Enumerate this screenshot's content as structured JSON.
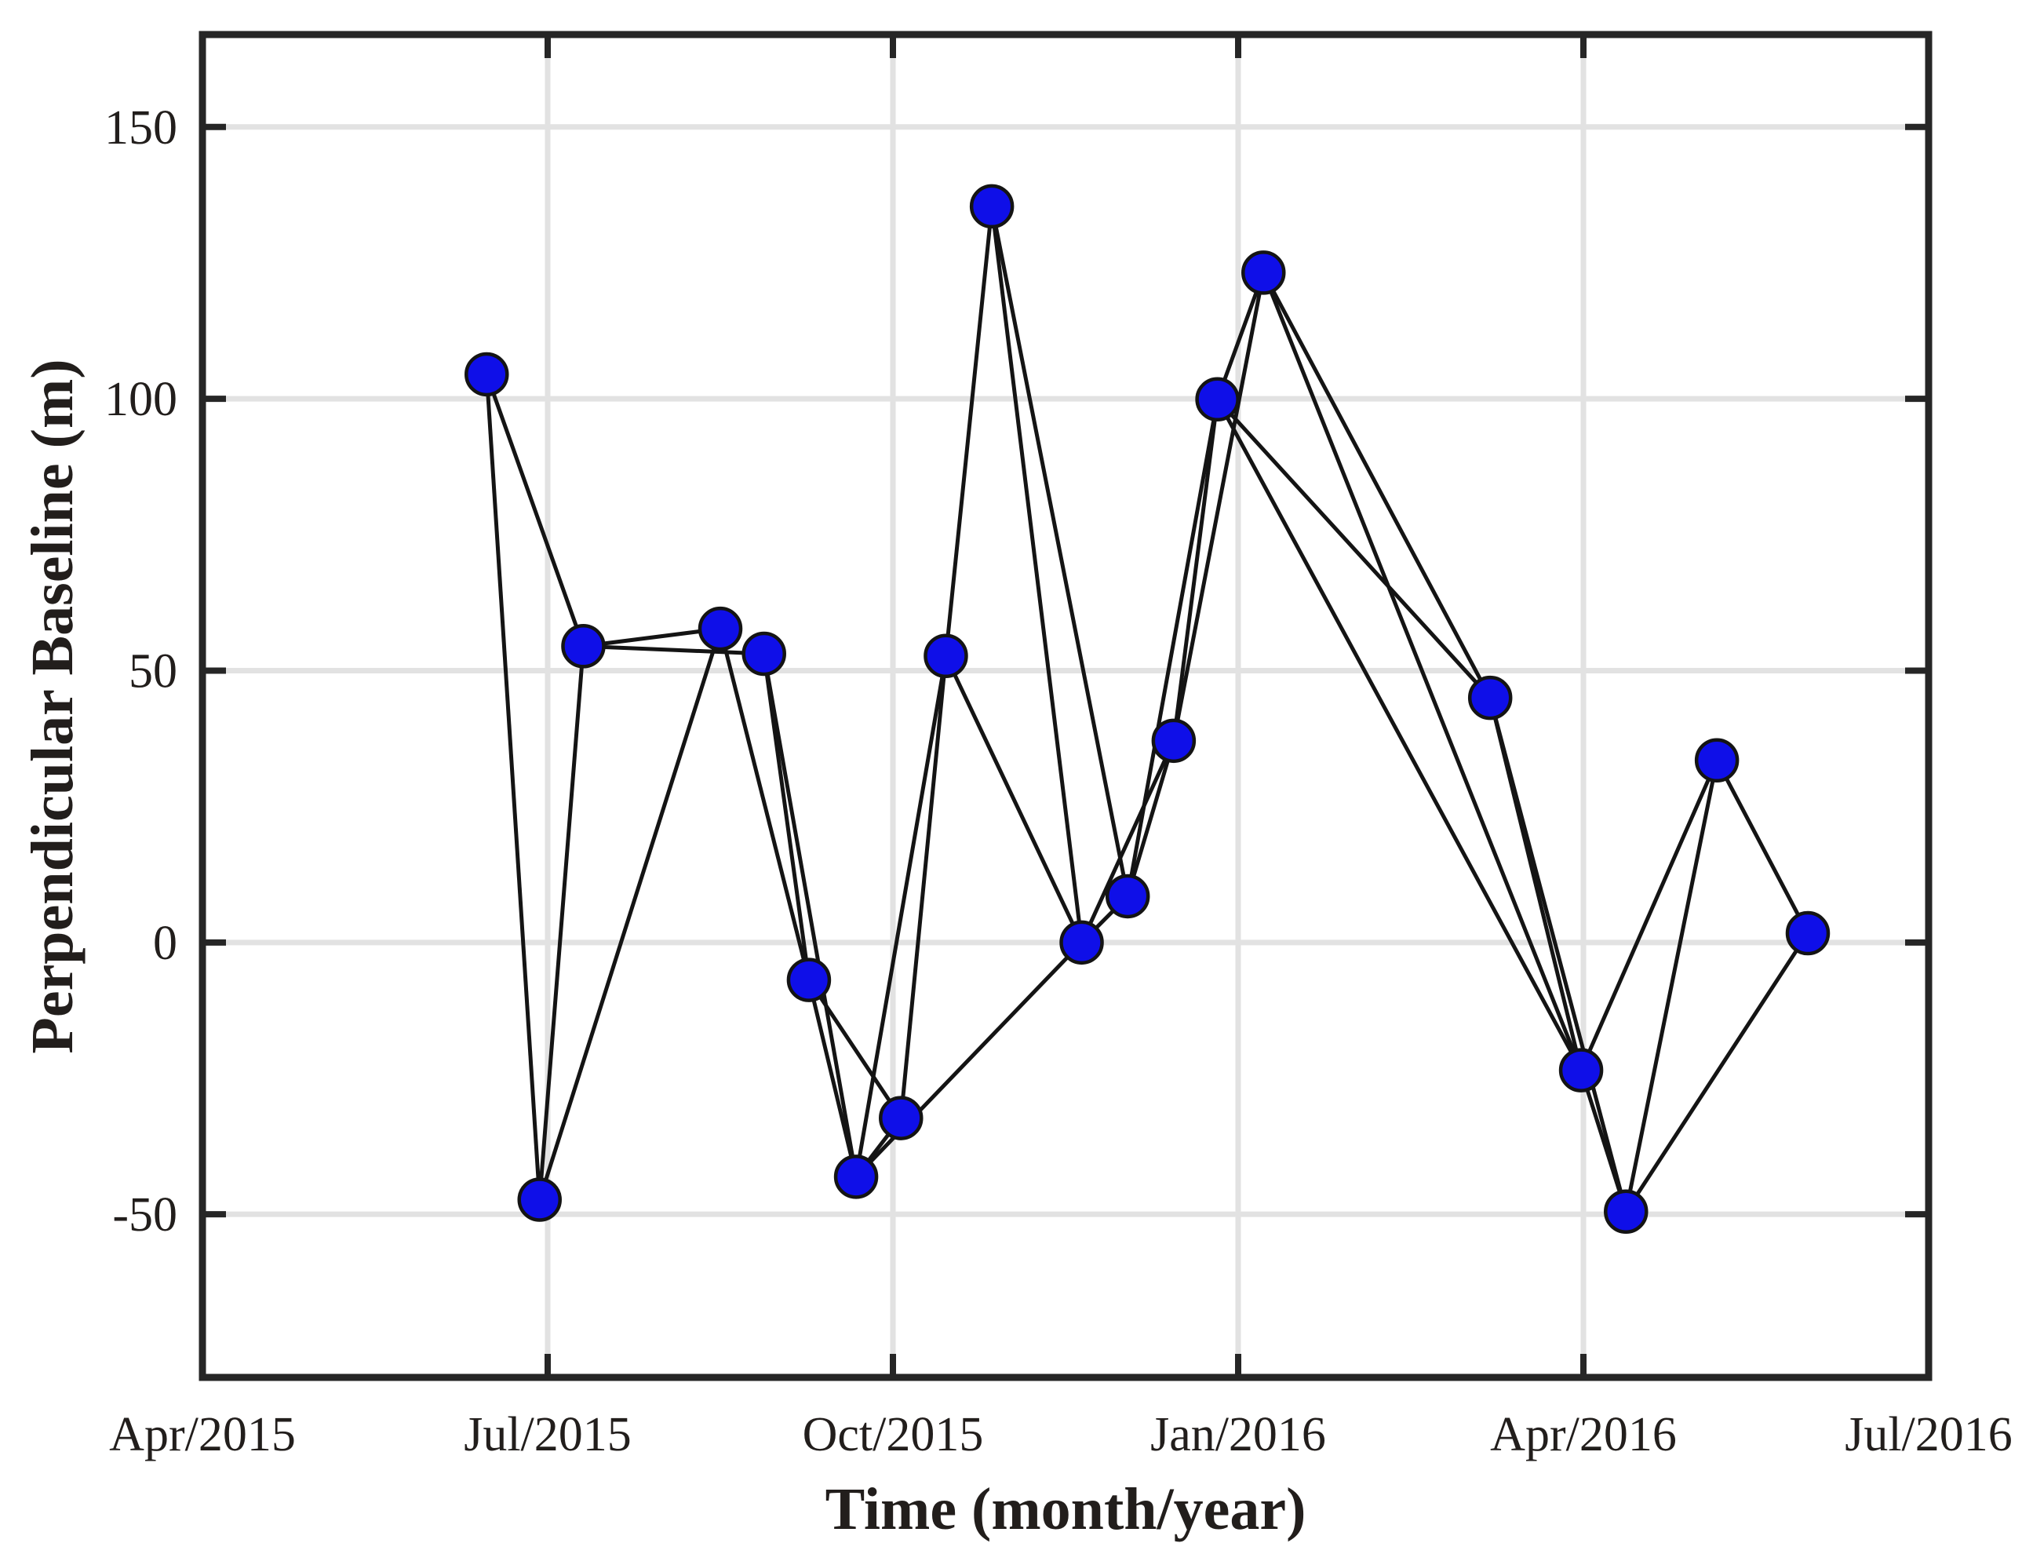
{
  "figure": {
    "background": "#ffffff",
    "description": "Baseline network plot: perpendicular baseline of SAR acquisitions vs time, points connected by interferometric pair edges"
  },
  "chart_data": {
    "type": "scatter",
    "subtype": "baseline-network",
    "title": "",
    "xlabel": "Time (month/year)",
    "ylabel": "Perpendicular Baseline (m)",
    "grid": true,
    "legend": "none",
    "x_axis": {
      "tick_labels": [
        "Apr/2015",
        "Jul/2015",
        "Oct/2015",
        "Jan/2016",
        "Apr/2016",
        "Jul/2016"
      ],
      "tick_months_offset": [
        0,
        3,
        6,
        9,
        12,
        15
      ],
      "xlim_months_offset": [
        0,
        15
      ]
    },
    "y_axis": {
      "tick_labels": [
        "150",
        "100",
        "50",
        "0",
        "-50"
      ],
      "tick_values": [
        150,
        100,
        50,
        0,
        -50
      ],
      "ylim": [
        -80,
        167
      ]
    },
    "points": [
      {
        "date_est": "2015-06-15",
        "x_months": 2.47,
        "baseline_m": 104.5
      },
      {
        "date_est": "2015-06-29",
        "x_months": 2.93,
        "baseline_m": -47.3
      },
      {
        "date_est": "2015-07-10",
        "x_months": 3.31,
        "baseline_m": 54.5
      },
      {
        "date_est": "2015-08-16",
        "x_months": 4.5,
        "baseline_m": 57.7
      },
      {
        "date_est": "2015-08-27",
        "x_months": 4.88,
        "baseline_m": 53.1
      },
      {
        "date_est": "2015-09-09",
        "x_months": 5.27,
        "baseline_m": -6.9
      },
      {
        "date_est": "2015-09-21",
        "x_months": 5.68,
        "baseline_m": -43.1
      },
      {
        "date_est": "2015-10-03",
        "x_months": 6.07,
        "baseline_m": -32.3
      },
      {
        "date_est": "2015-10-15",
        "x_months": 6.46,
        "baseline_m": 52.7
      },
      {
        "date_est": "2015-10-27",
        "x_months": 6.86,
        "baseline_m": 135.4
      },
      {
        "date_est": "2015-11-20",
        "x_months": 7.64,
        "baseline_m": 0.0
      },
      {
        "date_est": "2015-12-02",
        "x_months": 8.04,
        "baseline_m": 8.5
      },
      {
        "date_est": "2015-12-14",
        "x_months": 8.44,
        "baseline_m": 37.1
      },
      {
        "date_est": "2015-12-25",
        "x_months": 8.82,
        "baseline_m": 99.9
      },
      {
        "date_est": "2016-01-07",
        "x_months": 9.22,
        "baseline_m": 123.2
      },
      {
        "date_est": "2016-03-06",
        "x_months": 11.19,
        "baseline_m": 45.0
      },
      {
        "date_est": "2016-03-31",
        "x_months": 11.98,
        "baseline_m": -23.5
      },
      {
        "date_est": "2016-04-12",
        "x_months": 12.37,
        "baseline_m": -49.5
      },
      {
        "date_est": "2016-05-06",
        "x_months": 13.16,
        "baseline_m": 33.5
      },
      {
        "date_est": "2016-05-30",
        "x_months": 13.95,
        "baseline_m": 1.7
      }
    ],
    "edges": [
      [
        0,
        1
      ],
      [
        0,
        2
      ],
      [
        1,
        2
      ],
      [
        1,
        3
      ],
      [
        2,
        3
      ],
      [
        2,
        4
      ],
      [
        3,
        5
      ],
      [
        4,
        5
      ],
      [
        4,
        6
      ],
      [
        5,
        6
      ],
      [
        5,
        7
      ],
      [
        6,
        7
      ],
      [
        6,
        8
      ],
      [
        7,
        8
      ],
      [
        6,
        10
      ],
      [
        8,
        9
      ],
      [
        8,
        10
      ],
      [
        9,
        10
      ],
      [
        9,
        11
      ],
      [
        10,
        11
      ],
      [
        10,
        12
      ],
      [
        11,
        12
      ],
      [
        11,
        13
      ],
      [
        12,
        13
      ],
      [
        12,
        14
      ],
      [
        13,
        14
      ],
      [
        13,
        15
      ],
      [
        14,
        15
      ],
      [
        13,
        16
      ],
      [
        14,
        16
      ],
      [
        15,
        16
      ],
      [
        15,
        17
      ],
      [
        16,
        17
      ],
      [
        16,
        18
      ],
      [
        17,
        18
      ],
      [
        17,
        19
      ],
      [
        18,
        19
      ]
    ],
    "style_colors": {
      "marker_fill": "#0f0fe8",
      "marker_edge": "#141414",
      "edge_line": "#141414",
      "grid_line": "#e2e2e2",
      "axis_box": "#262626",
      "text": "#221e1c"
    }
  }
}
